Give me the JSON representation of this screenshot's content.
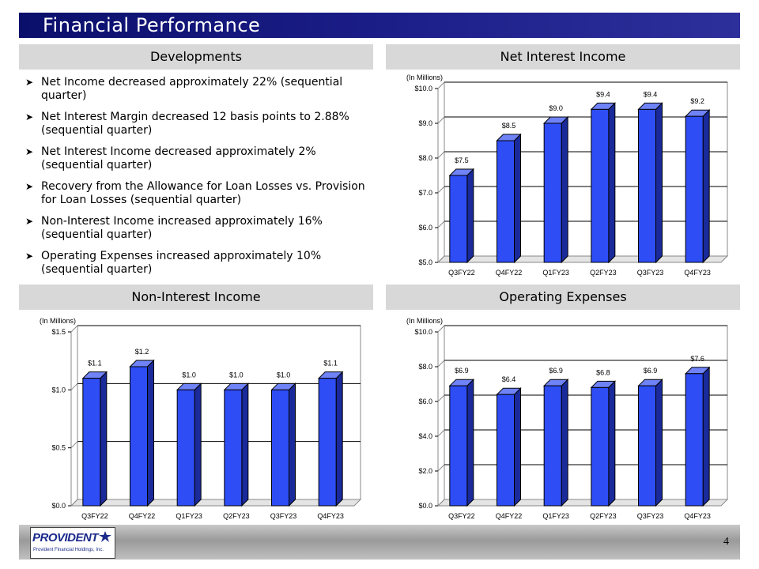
{
  "slide": {
    "title": "Financial Performance",
    "page_number": "4"
  },
  "sections": {
    "developments": "Developments",
    "net_interest_income": "Net Interest Income",
    "non_interest_income": "Non-Interest Income",
    "operating_expenses": "Operating Expenses"
  },
  "developments": {
    "bullets": [
      "Net Income decreased approximately 22% (sequential quarter)",
      "Net Interest Margin decreased 12 basis points to 2.88% (sequential quarter)",
      "Net Interest Income decreased approximately 2% (sequential quarter)",
      "Recovery from the Allowance  for Loan Losses vs. Provision  for Loan Losses (sequential quarter)",
      "Non-Interest Income increased approximately 16% (sequential quarter)",
      "Operating Expenses increased approximately 10% (sequential quarter)"
    ]
  },
  "logo": {
    "name": "PROVIDENT",
    "subtitle": "Provident Financial Holdings, Inc."
  },
  "colors": {
    "bar_front": "#2e4df5",
    "bar_side": "#1a2a9a",
    "bar_top": "#6f83f7",
    "title_bar": "#0a0f6b"
  },
  "chart_data": [
    {
      "id": "net-interest-income",
      "type": "bar",
      "title": "Net Interest Income",
      "ylabel": "(In Millions)",
      "categories": [
        "Q3FY22",
        "Q4FY22",
        "Q1FY23",
        "Q2FY23",
        "Q3FY23",
        "Q4FY23"
      ],
      "values": [
        7.5,
        8.5,
        9.0,
        9.4,
        9.4,
        9.2
      ],
      "labels": [
        "$7.5",
        "$8.5",
        "$9.0",
        "$9.4",
        "$9.4",
        "$9.2"
      ],
      "yticks": [
        5.0,
        6.0,
        7.0,
        8.0,
        9.0,
        10.0
      ],
      "ytick_labels": [
        "$5.0",
        "$6.0",
        "$7.0",
        "$8.0",
        "$9.0",
        "$10.0"
      ],
      "ylim": [
        5.0,
        10.0
      ],
      "grid": true
    },
    {
      "id": "non-interest-income",
      "type": "bar",
      "title": "Non-Interest Income",
      "ylabel": "(In Millions)",
      "categories": [
        "Q3FY22",
        "Q4FY22",
        "Q1FY23",
        "Q2FY23",
        "Q3FY23",
        "Q4FY23"
      ],
      "values": [
        1.1,
        1.2,
        1.0,
        1.0,
        1.0,
        1.1
      ],
      "labels": [
        "$1.1",
        "$1.2",
        "$1.0",
        "$1.0",
        "$1.0",
        "$1.1"
      ],
      "yticks": [
        0.0,
        0.5,
        1.0,
        1.5
      ],
      "ytick_labels": [
        "$0.0",
        "$0.5",
        "$1.0",
        "$1.5"
      ],
      "ylim": [
        0.0,
        1.5
      ],
      "grid": true
    },
    {
      "id": "operating-expenses",
      "type": "bar",
      "title": "Operating Expenses",
      "ylabel": "(In Millions)",
      "categories": [
        "Q3FY22",
        "Q4FY22",
        "Q1FY23",
        "Q2FY23",
        "Q3FY23",
        "Q4FY23"
      ],
      "values": [
        6.9,
        6.4,
        6.9,
        6.8,
        6.9,
        7.6
      ],
      "labels": [
        "$6.9",
        "$6.4",
        "$6.9",
        "$6.8",
        "$6.9",
        "$7.6"
      ],
      "yticks": [
        0.0,
        2.0,
        4.0,
        6.0,
        8.0,
        10.0
      ],
      "ytick_labels": [
        "$0.0",
        "$2.0",
        "$4.0",
        "$6.0",
        "$8.0",
        "$10.0"
      ],
      "ylim": [
        0.0,
        10.0
      ],
      "grid": true
    }
  ]
}
